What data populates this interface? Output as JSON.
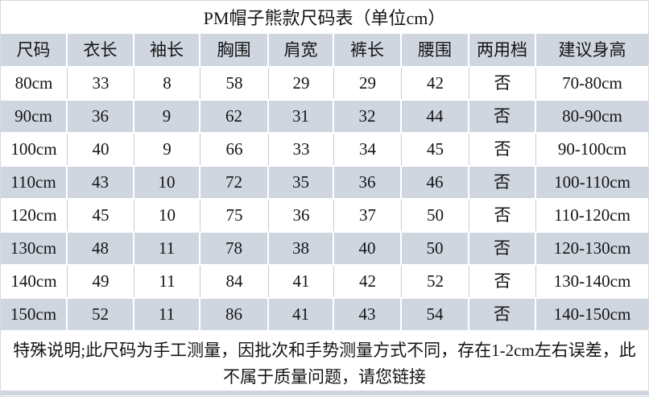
{
  "chart_data": {
    "type": "table",
    "title": "PM帽子熊款尺码表（单位cm）",
    "columns": [
      "尺码",
      "衣长",
      "袖长",
      "胸围",
      "肩宽",
      "裤长",
      "腰围",
      "两用档",
      "建议身高"
    ],
    "rows": [
      [
        "80cm",
        "33",
        "8",
        "58",
        "29",
        "29",
        "42",
        "否",
        "70-80cm"
      ],
      [
        "90cm",
        "36",
        "9",
        "62",
        "31",
        "32",
        "44",
        "否",
        "80-90cm"
      ],
      [
        "100cm",
        "40",
        "9",
        "66",
        "33",
        "34",
        "45",
        "否",
        "90-100cm"
      ],
      [
        "110cm",
        "43",
        "10",
        "72",
        "35",
        "36",
        "46",
        "否",
        "100-110cm"
      ],
      [
        "120cm",
        "45",
        "10",
        "75",
        "36",
        "37",
        "50",
        "否",
        "110-120cm"
      ],
      [
        "130cm",
        "48",
        "11",
        "78",
        "38",
        "40",
        "50",
        "否",
        "120-130cm"
      ],
      [
        "140cm",
        "49",
        "11",
        "84",
        "41",
        "42",
        "52",
        "否",
        "130-140cm"
      ],
      [
        "150cm",
        "52",
        "11",
        "86",
        "41",
        "43",
        "54",
        "否",
        "140-150cm"
      ]
    ],
    "note_line1": "特殊说明;此尺码为手工测量，因批次和手势测量方式不同，存在1-2cm左右误差，此",
    "note_line2": "不属于质量问题，请您链接",
    "unit": "cm",
    "layout": {
      "header_fill": true,
      "zebra_striping": true,
      "first_data_row": "white"
    }
  },
  "colors": {
    "header_and_alt_row_bg": "#d0d6e0",
    "row_bg": "#ffffff",
    "separator_on_white_rows": "#c5cbdd",
    "separator_on_gray_rows": "#ffffff",
    "text": "#141414",
    "outer_border": "#d6dae0"
  }
}
